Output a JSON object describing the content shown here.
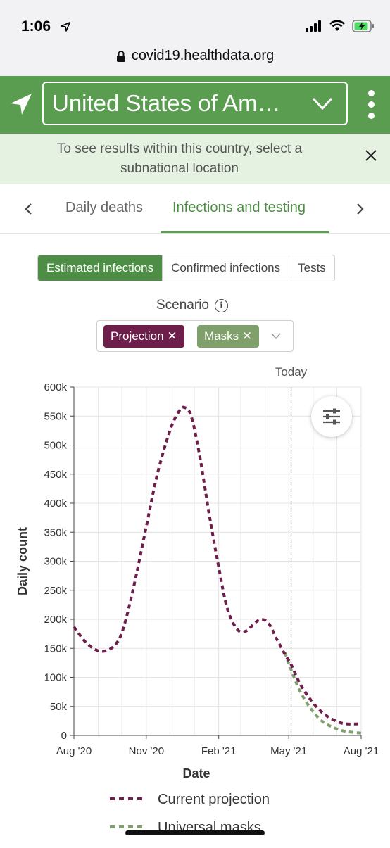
{
  "status": {
    "time": "1:06"
  },
  "browser": {
    "url": "covid19.healthdata.org"
  },
  "header": {
    "location": "United States of Am…"
  },
  "notice": {
    "text": "To see results within this country, select a subnational location"
  },
  "tabs": {
    "items": [
      {
        "label": "Daily deaths"
      },
      {
        "label": "Infections and testing",
        "active": true
      }
    ]
  },
  "segmented": {
    "options": [
      {
        "label": "Estimated infections",
        "active": true
      },
      {
        "label": "Confirmed infections"
      },
      {
        "label": "Tests"
      }
    ]
  },
  "scenario": {
    "label": "Scenario",
    "chips": [
      {
        "label": "Projection ✕",
        "color": "#6e1e4a"
      },
      {
        "label": "Masks ✕",
        "color": "#7fa06b"
      }
    ]
  },
  "colors": {
    "brand_green": "#5a9c50",
    "projection": "#6e1e4a",
    "masks": "#7fa06b"
  },
  "chart_data": {
    "type": "line",
    "xlabel": "Date",
    "ylabel": "Daily count",
    "today_label": "Today",
    "x_ticks": [
      "Aug '20",
      "Nov '20",
      "Feb '21",
      "May '21",
      "Aug '21"
    ],
    "y_ticks": [
      "0",
      "50k",
      "100k",
      "150k",
      "200k",
      "250k",
      "300k",
      "350k",
      "400k",
      "450k",
      "500k",
      "550k",
      "600k"
    ],
    "ylim": [
      0,
      600000
    ],
    "xlim": [
      "2020-08-01",
      "2021-08-01"
    ],
    "today": "2021-05-04",
    "grid": true,
    "legend_position": "bottom",
    "series": [
      {
        "name": "Current projection",
        "color": "#6e1e4a",
        "style": "dotted",
        "points": [
          [
            "2020-08-01",
            187000
          ],
          [
            "2020-08-15",
            162000
          ],
          [
            "2020-08-28",
            148000
          ],
          [
            "2020-09-08",
            145000
          ],
          [
            "2020-09-20",
            153000
          ],
          [
            "2020-10-01",
            177000
          ],
          [
            "2020-10-15",
            250000
          ],
          [
            "2020-11-01",
            360000
          ],
          [
            "2020-11-15",
            450000
          ],
          [
            "2020-12-01",
            525000
          ],
          [
            "2020-12-12",
            557000
          ],
          [
            "2020-12-19",
            565000
          ],
          [
            "2020-12-28",
            550000
          ],
          [
            "2021-01-08",
            480000
          ],
          [
            "2021-01-20",
            380000
          ],
          [
            "2021-02-01",
            290000
          ],
          [
            "2021-02-12",
            218000
          ],
          [
            "2021-02-25",
            182000
          ],
          [
            "2021-03-08",
            180000
          ],
          [
            "2021-03-20",
            195000
          ],
          [
            "2021-03-28",
            200000
          ],
          [
            "2021-04-06",
            192000
          ],
          [
            "2021-04-15",
            168000
          ],
          [
            "2021-04-26",
            140000
          ],
          [
            "2021-05-04",
            122000
          ],
          [
            "2021-05-15",
            90000
          ],
          [
            "2021-05-28",
            63000
          ],
          [
            "2021-06-12",
            40000
          ],
          [
            "2021-06-28",
            26000
          ],
          [
            "2021-07-12",
            20000
          ],
          [
            "2021-08-01",
            20000
          ]
        ]
      },
      {
        "name": "Universal masks",
        "color": "#7fa06b",
        "style": "dotted",
        "points": [
          [
            "2021-04-26",
            143000
          ],
          [
            "2021-05-04",
            113000
          ],
          [
            "2021-05-15",
            77000
          ],
          [
            "2021-05-28",
            48000
          ],
          [
            "2021-06-12",
            25000
          ],
          [
            "2021-06-28",
            13000
          ],
          [
            "2021-07-12",
            7000
          ],
          [
            "2021-08-01",
            4000
          ]
        ]
      }
    ]
  }
}
